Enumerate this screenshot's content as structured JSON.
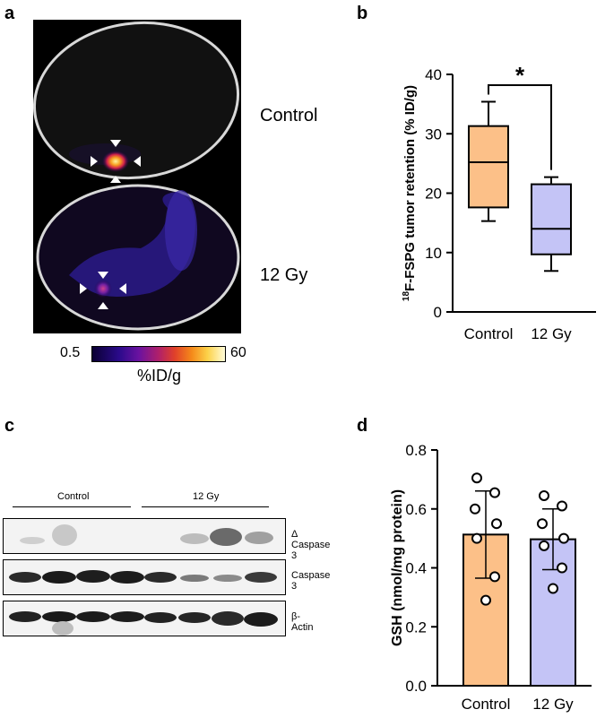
{
  "panels": {
    "a": "a",
    "b": "b",
    "c": "c",
    "d": "d"
  },
  "panel_a": {
    "labels": [
      "Control",
      "12 Gy"
    ],
    "colorbar": {
      "min": "0.5",
      "max": "60",
      "unit": "%ID/g"
    }
  },
  "panel_c": {
    "groups": [
      "Control",
      "12 Gy"
    ],
    "bands": [
      "Δ Caspase 3",
      "Caspase 3",
      "β-Actin"
    ]
  },
  "chart_data": [
    {
      "type": "box",
      "panel": "b",
      "categories": [
        "Control",
        "12 Gy"
      ],
      "ylabel_superscript": "18",
      "ylabel": "F-FSPG tumor retention (% ID/g)",
      "ylim": [
        0,
        40
      ],
      "yticks": [
        "0",
        "10",
        "20",
        "30",
        "40"
      ],
      "boxes": [
        {
          "name": "Control",
          "min": 15.3,
          "q1": 17.6,
          "median": 25.2,
          "q3": 31.3,
          "max": 35.4,
          "color": "#fcc088"
        },
        {
          "name": "12 Gy",
          "min": 6.9,
          "q1": 9.7,
          "median": 14.0,
          "q3": 21.5,
          "max": 22.7,
          "color": "#c4c4f6"
        }
      ],
      "significance": "*"
    },
    {
      "type": "bar",
      "panel": "d",
      "categories": [
        "Control",
        "12 Gy"
      ],
      "ylabel": "GSH (nmol/mg protein)",
      "ylim": [
        0,
        0.8
      ],
      "yticks": [
        "0.0",
        "0.2",
        "0.4",
        "0.6",
        "0.8"
      ],
      "values": [
        0.513,
        0.497
      ],
      "errors": [
        0.148,
        0.103
      ],
      "colors": [
        "#fcc088",
        "#c4c4f6"
      ],
      "points": [
        [
          0.705,
          0.655,
          0.6,
          0.55,
          0.5,
          0.37,
          0.29
        ],
        [
          0.645,
          0.61,
          0.55,
          0.5,
          0.475,
          0.4,
          0.33
        ]
      ]
    }
  ]
}
